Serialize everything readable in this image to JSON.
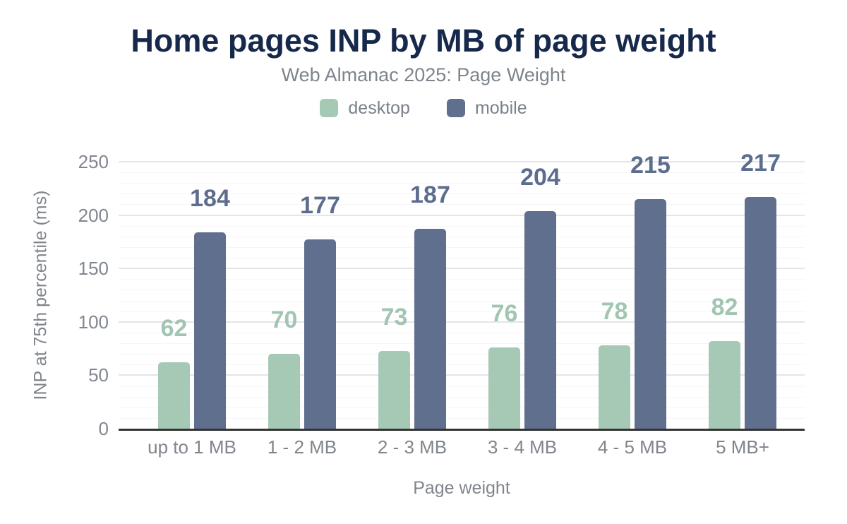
{
  "title": "Home pages INP by MB of page weight",
  "subtitle": "Web Almanac 2025: Page Weight",
  "legend": [
    {
      "label": "desktop",
      "color": "#a6c9b6"
    },
    {
      "label": "mobile",
      "color": "#5f6f8d"
    }
  ],
  "chart_data": {
    "type": "bar",
    "title": "Home pages INP by MB of page weight",
    "subtitle": "Web Almanac 2025: Page Weight",
    "categories": [
      "up to 1 MB",
      "1 - 2 MB",
      "2 - 3 MB",
      "3 - 4 MB",
      "4 - 5 MB",
      "5 MB+"
    ],
    "series": [
      {
        "name": "desktop",
        "color": "#a6c9b6",
        "label_color": "#a2c5b2",
        "values": [
          62,
          70,
          73,
          76,
          78,
          82
        ]
      },
      {
        "name": "mobile",
        "color": "#5f6f8d",
        "label_color": "#5d6d8d",
        "values": [
          184,
          177,
          187,
          204,
          215,
          217
        ]
      }
    ],
    "xlabel": "Page weight",
    "ylabel": "INP at 75th percentile (ms)",
    "ylim": [
      0,
      250
    ],
    "yticks": [
      0,
      50,
      100,
      150,
      200,
      250
    ],
    "ytick_minor_step": 10,
    "grid": true,
    "legend_position": "top",
    "data_labels": true
  },
  "colors": {
    "title": "#16294b",
    "subtitle": "#7e848c",
    "tick_text": "#82878f",
    "axis_line": "#333333",
    "grid_major": "#e4e5e9",
    "grid_minor": "#f6f6f8",
    "background": "#ffffff"
  }
}
